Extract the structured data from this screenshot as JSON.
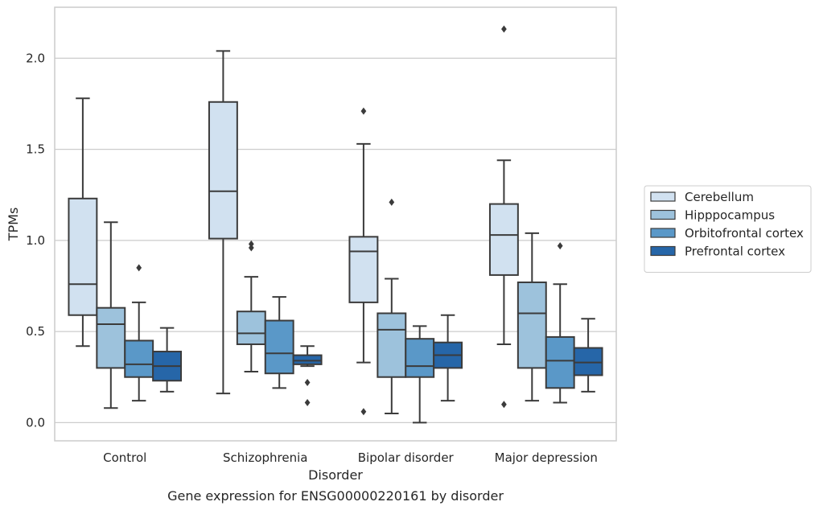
{
  "chart_data": {
    "type": "boxplot",
    "title": "",
    "caption": "Gene expression for ENSG00000220161 by disorder",
    "xlabel": "Disorder",
    "ylabel": "TPMs",
    "categories": [
      "Control",
      "Schizophrenia",
      "Bipolar disorder",
      "Major depression"
    ],
    "ylim": [
      -0.1,
      2.28
    ],
    "yticks": [
      0.0,
      0.5,
      1.0,
      1.5,
      2.0
    ],
    "ytick_labels": [
      "0.0",
      "0.5",
      "1.0",
      "1.5",
      "2.0"
    ],
    "grid": "horizontal",
    "legend_position": "right",
    "series": [
      {
        "name": "Cerebellum",
        "color": "#d1e1f0",
        "boxes": [
          {
            "whislo": 0.42,
            "q1": 0.59,
            "med": 0.76,
            "q3": 1.23,
            "whishi": 1.78,
            "fliers": []
          },
          {
            "whislo": 0.16,
            "q1": 1.01,
            "med": 1.27,
            "q3": 1.76,
            "whishi": 2.04,
            "fliers": []
          },
          {
            "whislo": 0.33,
            "q1": 0.66,
            "med": 0.94,
            "q3": 1.02,
            "whishi": 1.53,
            "fliers": [
              1.71,
              0.06
            ]
          },
          {
            "whislo": 0.43,
            "q1": 0.81,
            "med": 1.03,
            "q3": 1.2,
            "whishi": 1.44,
            "fliers": [
              2.16,
              0.1
            ]
          }
        ]
      },
      {
        "name": "Hipppocampus",
        "color": "#9dc2dc",
        "boxes": [
          {
            "whislo": 0.08,
            "q1": 0.3,
            "med": 0.54,
            "q3": 0.63,
            "whishi": 1.1,
            "fliers": []
          },
          {
            "whislo": 0.28,
            "q1": 0.43,
            "med": 0.49,
            "q3": 0.61,
            "whishi": 0.8,
            "fliers": [
              0.98,
              0.96
            ]
          },
          {
            "whislo": 0.05,
            "q1": 0.25,
            "med": 0.51,
            "q3": 0.6,
            "whishi": 0.79,
            "fliers": [
              1.21
            ]
          },
          {
            "whislo": 0.12,
            "q1": 0.3,
            "med": 0.6,
            "q3": 0.77,
            "whishi": 1.04,
            "fliers": []
          }
        ]
      },
      {
        "name": "Orbitofrontal cortex",
        "color": "#5a98c8",
        "boxes": [
          {
            "whislo": 0.12,
            "q1": 0.25,
            "med": 0.32,
            "q3": 0.45,
            "whishi": 0.66,
            "fliers": [
              0.85
            ]
          },
          {
            "whislo": 0.19,
            "q1": 0.27,
            "med": 0.38,
            "q3": 0.56,
            "whishi": 0.69,
            "fliers": []
          },
          {
            "whislo": 0.0,
            "q1": 0.25,
            "med": 0.31,
            "q3": 0.46,
            "whishi": 0.53,
            "fliers": []
          },
          {
            "whislo": 0.11,
            "q1": 0.19,
            "med": 0.34,
            "q3": 0.47,
            "whishi": 0.76,
            "fliers": [
              0.97
            ]
          }
        ]
      },
      {
        "name": "Prefrontal cortex",
        "color": "#2666a8",
        "boxes": [
          {
            "whislo": 0.17,
            "q1": 0.23,
            "med": 0.31,
            "q3": 0.39,
            "whishi": 0.52,
            "fliers": []
          },
          {
            "whislo": 0.31,
            "q1": 0.32,
            "med": 0.34,
            "q3": 0.37,
            "whishi": 0.42,
            "fliers": [
              0.22,
              0.11
            ]
          },
          {
            "whislo": 0.12,
            "q1": 0.3,
            "med": 0.37,
            "q3": 0.44,
            "whishi": 0.59,
            "fliers": []
          },
          {
            "whislo": 0.17,
            "q1": 0.26,
            "med": 0.33,
            "q3": 0.41,
            "whishi": 0.57,
            "fliers": []
          }
        ]
      }
    ]
  }
}
